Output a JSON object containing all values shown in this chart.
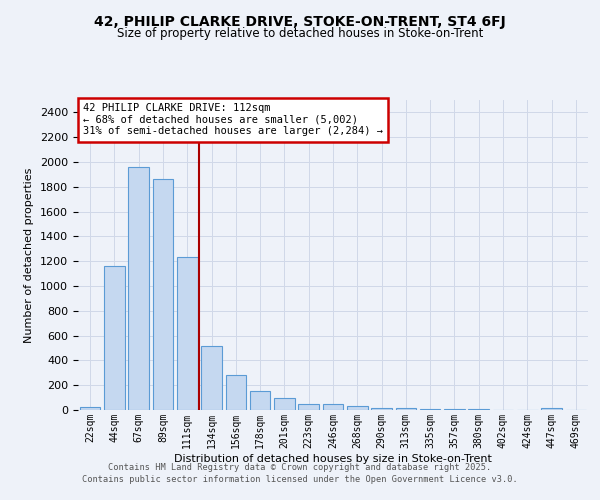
{
  "title": "42, PHILIP CLARKE DRIVE, STOKE-ON-TRENT, ST4 6FJ",
  "subtitle": "Size of property relative to detached houses in Stoke-on-Trent",
  "xlabel": "Distribution of detached houses by size in Stoke-on-Trent",
  "ylabel": "Number of detached properties",
  "categories": [
    "22sqm",
    "44sqm",
    "67sqm",
    "89sqm",
    "111sqm",
    "134sqm",
    "156sqm",
    "178sqm",
    "201sqm",
    "223sqm",
    "246sqm",
    "268sqm",
    "290sqm",
    "313sqm",
    "335sqm",
    "357sqm",
    "380sqm",
    "402sqm",
    "424sqm",
    "447sqm",
    "469sqm"
  ],
  "values": [
    25,
    1160,
    1960,
    1860,
    1230,
    520,
    280,
    155,
    95,
    45,
    45,
    30,
    20,
    15,
    10,
    8,
    5,
    3,
    3,
    15,
    3
  ],
  "bar_color": "#c5d8f0",
  "bar_edge_color": "#5b9bd5",
  "marker_index": 4,
  "annotation_line1": "42 PHILIP CLARKE DRIVE: 112sqm",
  "annotation_line2": "← 68% of detached houses are smaller (5,002)",
  "annotation_line3": "31% of semi-detached houses are larger (2,284) →",
  "annotation_box_color": "#ffffff",
  "annotation_box_edge": "#cc0000",
  "marker_line_color": "#aa0000",
  "grid_color": "#d0d8e8",
  "background_color": "#eef2f9",
  "ylim": [
    0,
    2500
  ],
  "yticks": [
    0,
    200,
    400,
    600,
    800,
    1000,
    1200,
    1400,
    1600,
    1800,
    2000,
    2200,
    2400
  ],
  "footnote1": "Contains HM Land Registry data © Crown copyright and database right 2025.",
  "footnote2": "Contains public sector information licensed under the Open Government Licence v3.0."
}
